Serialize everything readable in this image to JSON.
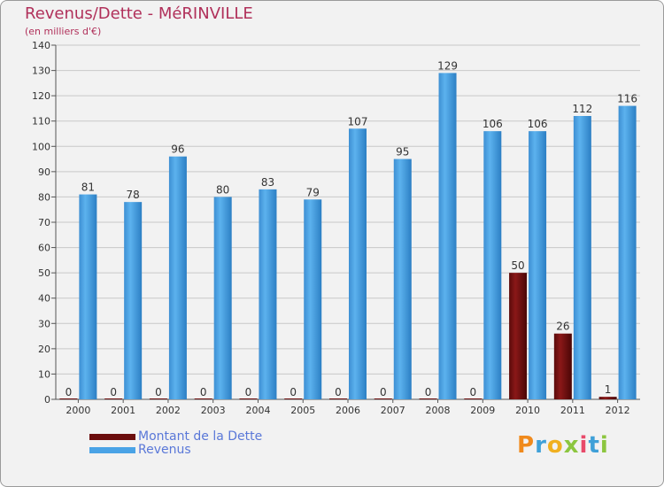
{
  "chart_data": {
    "type": "bar",
    "title": "Revenus/Dette - MéRINVILLE",
    "subtitle": "(en milliers d'€)",
    "categories": [
      "2000",
      "2001",
      "2002",
      "2003",
      "2004",
      "2005",
      "2006",
      "2007",
      "2008",
      "2009",
      "2010",
      "2011",
      "2012"
    ],
    "series": [
      {
        "name": "Montant de la Dette",
        "color": "#6b0d0d",
        "values": [
          0,
          0,
          0,
          0,
          0,
          0,
          0,
          0,
          0,
          0,
          50,
          26,
          1
        ]
      },
      {
        "name": "Revenus",
        "color": "#4aa3e6",
        "values": [
          81,
          78,
          96,
          80,
          83,
          79,
          107,
          95,
          129,
          106,
          106,
          112,
          116
        ]
      }
    ],
    "ylim": [
      0,
      140
    ],
    "yticks": [
      0,
      10,
      20,
      30,
      40,
      50,
      60,
      70,
      80,
      90,
      100,
      110,
      120,
      130,
      140
    ],
    "grid": true,
    "legend": "bottom-left"
  },
  "logo": {
    "text": "Proxiti",
    "colors": [
      "#f08a1c",
      "#3fa0d8",
      "#f0b020",
      "#8cc63f",
      "#e84a6a",
      "#3fa0d8",
      "#8cc63f"
    ]
  }
}
